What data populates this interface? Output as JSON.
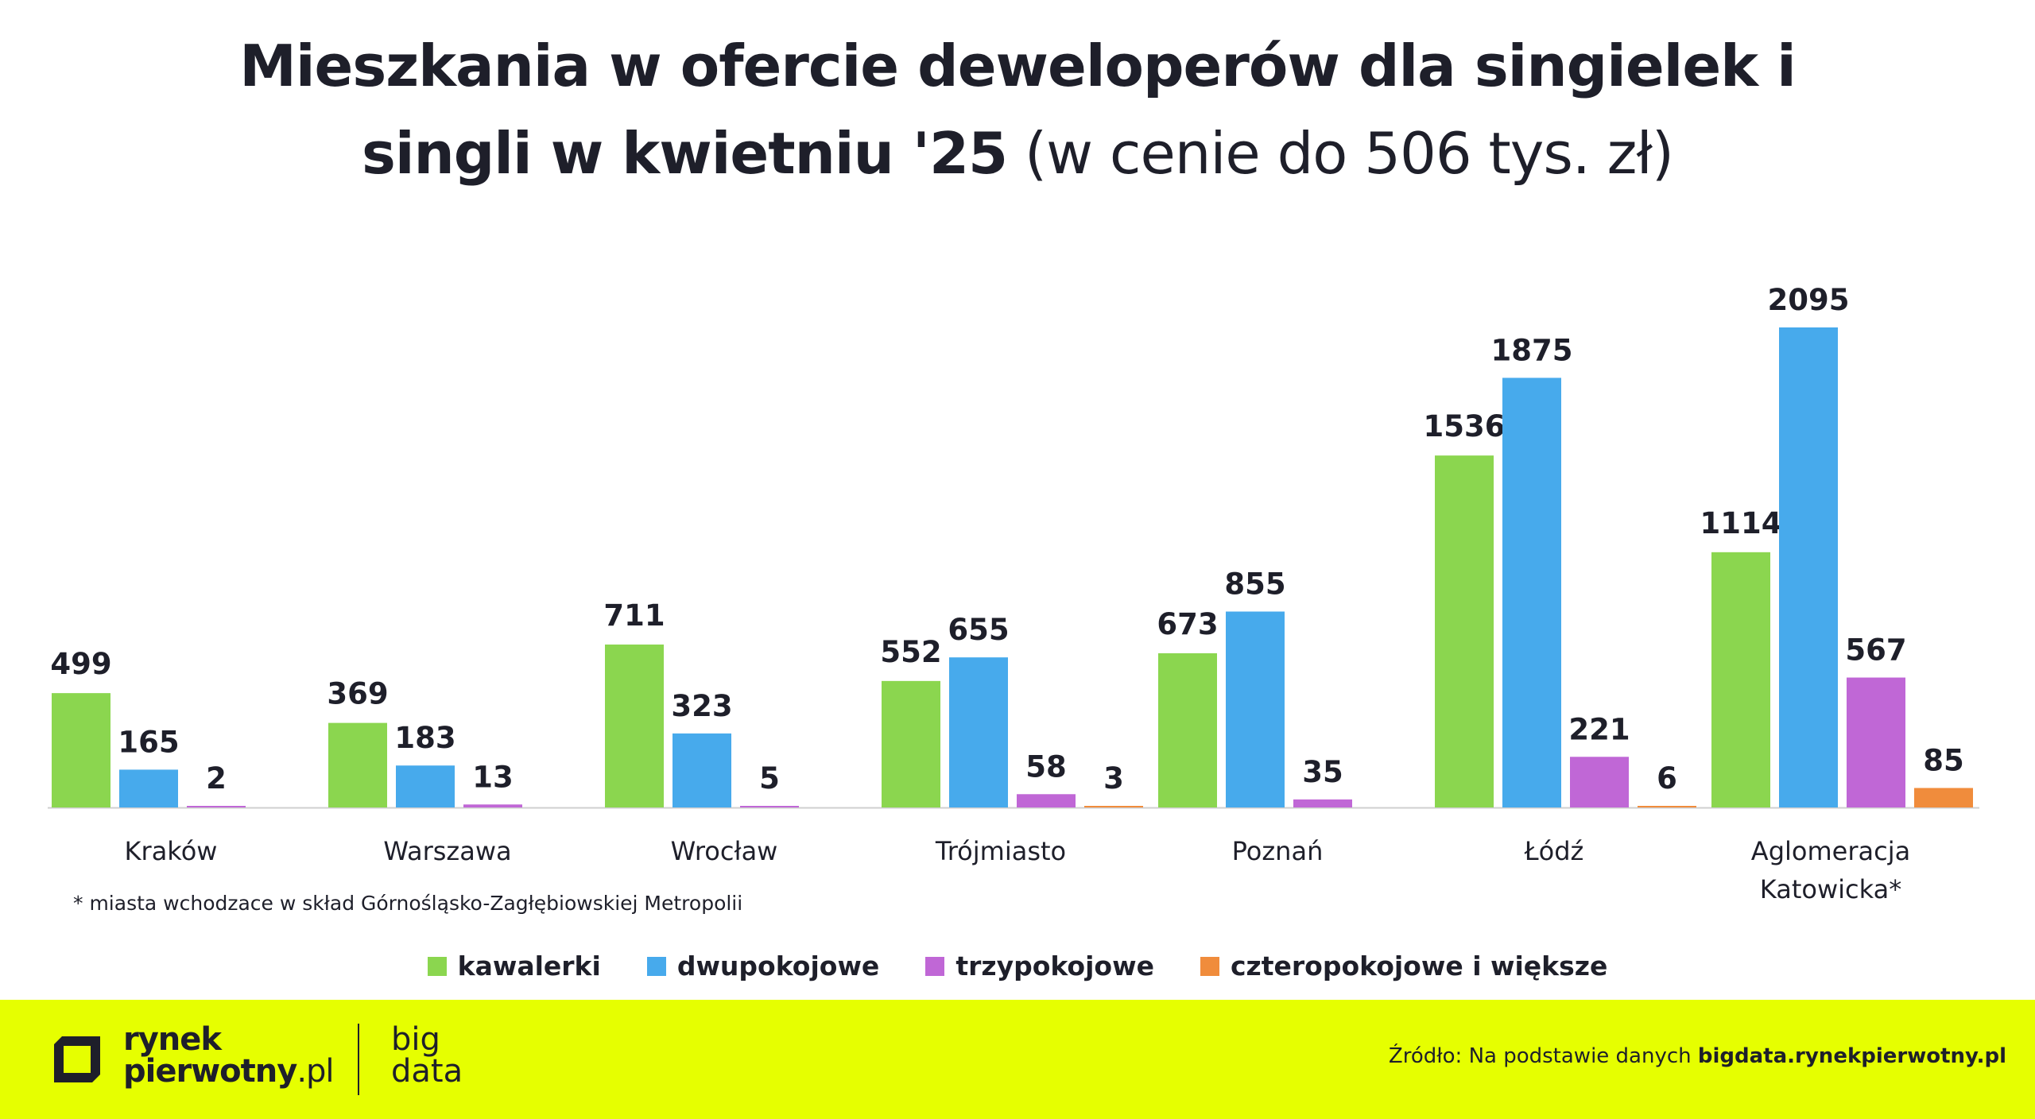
{
  "title": {
    "bold_line1": "Mieszkania w ofercie deweloperów dla singielek i",
    "bold_line2": "singli w kwietniu '25",
    "light_part": "(w cenie do 506 tys. zł)"
  },
  "colors": {
    "kawalerki": "#8bd64f",
    "dwupokojowe": "#47aaec",
    "trzypokojowe": "#c067d6",
    "czteropokojowe": "#f08c3c",
    "footer_bg": "#e6ff00"
  },
  "chart_data": {
    "type": "bar",
    "title": "Mieszkania w ofercie deweloperów dla singielek i singli w kwietniu '25 (w cenie do 506 tys. zł)",
    "categories": [
      "Kraków",
      "Warszawa",
      "Wrocław",
      "Trójmiasto",
      "Poznań",
      "Łódź",
      "Aglomeracja Katowicka*"
    ],
    "category_lines": [
      [
        "Kraków"
      ],
      [
        "Warszawa"
      ],
      [
        "Wrocław"
      ],
      [
        "Trójmiasto"
      ],
      [
        "Poznań"
      ],
      [
        "Łódź"
      ],
      [
        "Aglomeracja",
        "Katowicka*"
      ]
    ],
    "series": [
      {
        "name": "kawalerki",
        "values": [
          499,
          369,
          711,
          552,
          673,
          1536,
          1114
        ]
      },
      {
        "name": "dwupokojowe",
        "values": [
          165,
          183,
          323,
          655,
          855,
          1875,
          2095
        ]
      },
      {
        "name": "trzypokojowe",
        "values": [
          2,
          13,
          5,
          58,
          35,
          221,
          567
        ]
      },
      {
        "name": "czteropokojowe i większe",
        "values": [
          null,
          null,
          null,
          3,
          null,
          6,
          85
        ]
      }
    ],
    "ylim": [
      0,
      2095
    ],
    "grid": false,
    "legend_position": "bottom-center"
  },
  "footnote": "* miasta wchodzace w skład Górnośląsko-Zagłębiowskiej Metropolii",
  "legend": [
    {
      "label": "kawalerki",
      "color": "#8bd64f"
    },
    {
      "label": "dwupokojowe",
      "color": "#47aaec"
    },
    {
      "label": "trzypokojowe",
      "color": "#c067d6"
    },
    {
      "label": "czteropokojowe i większe",
      "color": "#f08c3c"
    }
  ],
  "footer": {
    "brand_line1": "rynek",
    "brand_line2": "pierwotny",
    "brand_suffix": ".pl",
    "brand2_line1": "big",
    "brand2_line2": "data",
    "source_prefix": "Źródło: Na podstawie danych ",
    "source_bold": "bigdata.rynekpierwotny.pl"
  }
}
